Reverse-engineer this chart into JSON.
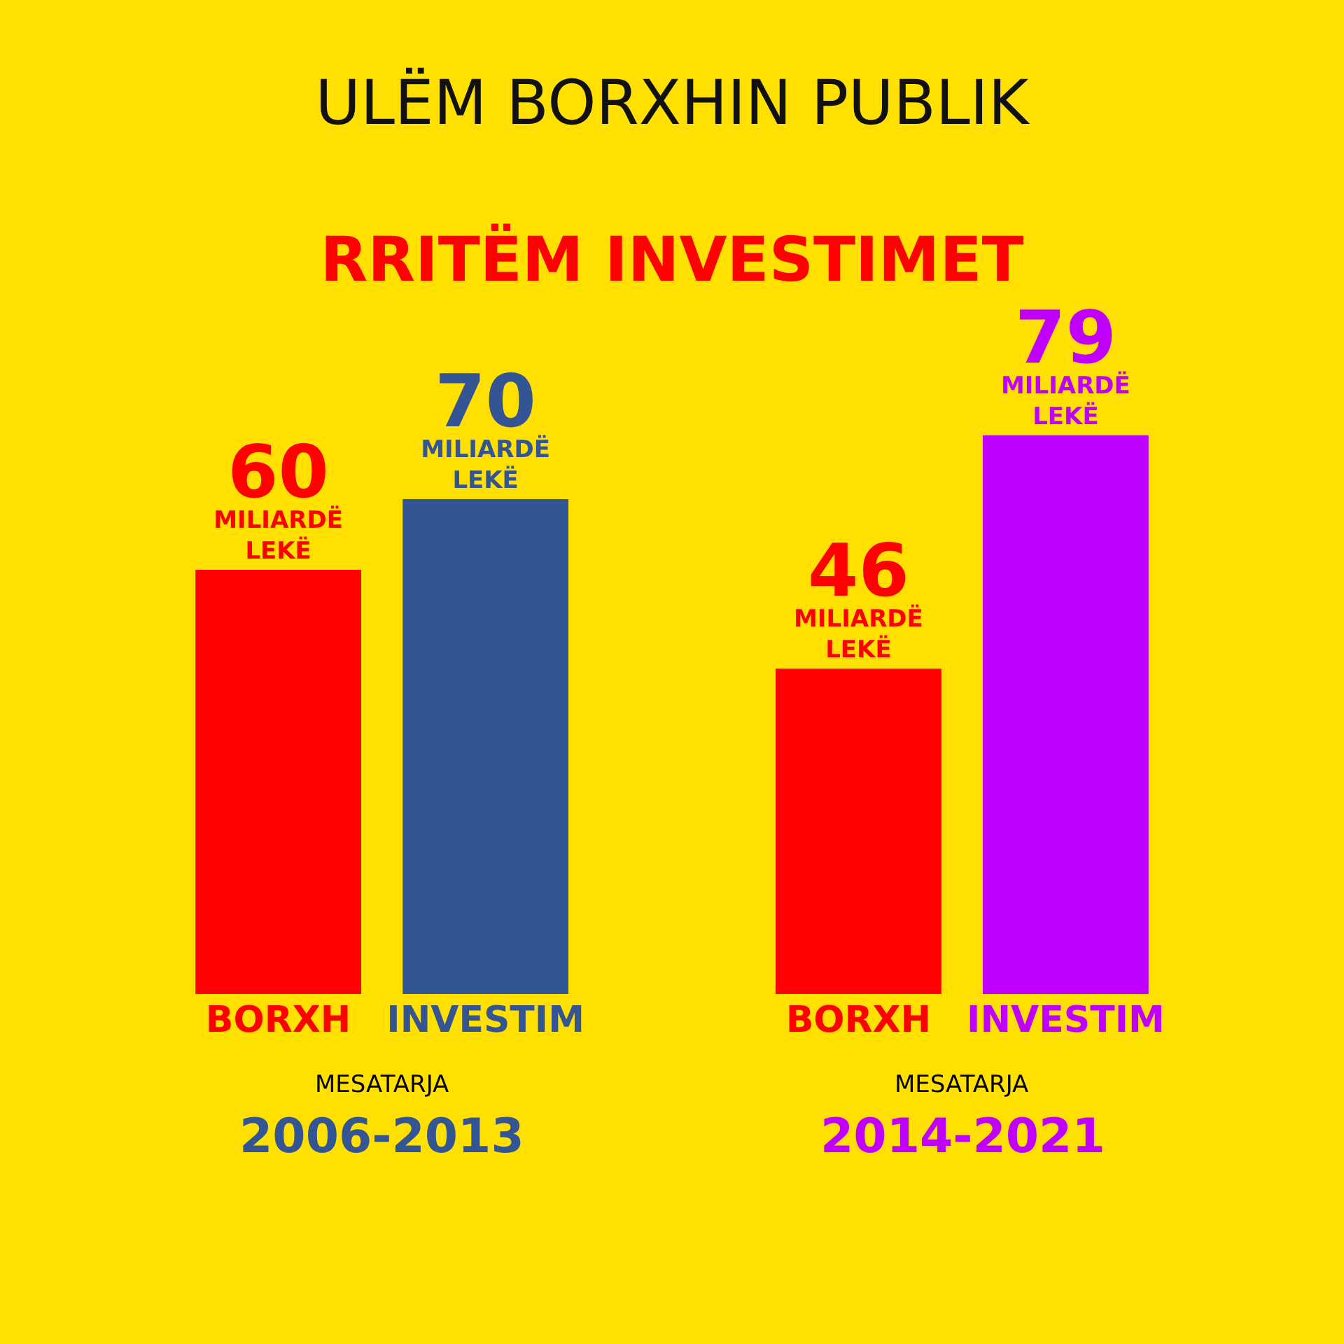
{
  "chart_data": {
    "type": "bar",
    "title": "ULËM BORXHIN PUBLIK",
    "subtitle": "RRITËM INVESTIMET",
    "categories": [
      "BORXH",
      "INVESTIM",
      "BORXH",
      "INVESTIM"
    ],
    "values": [
      60,
      70,
      46,
      79
    ],
    "colors": [
      "#ff0000",
      "#335593",
      "#ff0000",
      "#c000ff"
    ],
    "value_labels": [
      "60\nMILIARDË\nLEKË",
      "70\nMILIARDË\nLEKË",
      "46\nMILIARDË\nLEKË",
      "79\nMILIARDË\nLEKË"
    ],
    "annotations": [
      "MESATARJA",
      "2006-2013",
      "MESATARJA",
      "2014-2021"
    ],
    "grid": false
  }
}
